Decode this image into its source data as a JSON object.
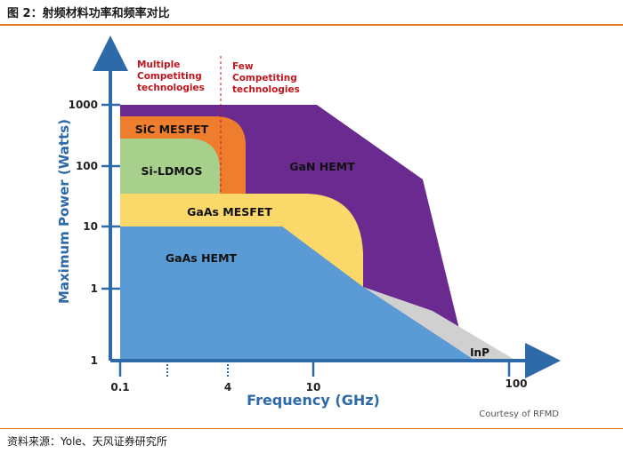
{
  "figure_title": "图 2：射频材料功率和频率对比",
  "source": "资料来源：Yole、天风证券研究所",
  "chart_data": {
    "type": "area",
    "xlabel": "Frequency (GHz)",
    "ylabel": "Maximum Power (Watts)",
    "x_scale": "log",
    "y_scale": "log",
    "x_ticks": [
      "0.1",
      "4",
      "10",
      "100"
    ],
    "y_ticks": [
      "1",
      "1",
      "10",
      "100",
      "1000"
    ],
    "regions": [
      {
        "name": "GaN HEMT",
        "color": "#6a2a8f"
      },
      {
        "name": "SiC MESFET",
        "color": "#ee7d2e"
      },
      {
        "name": "Si-LDMOS",
        "color": "#a6d08c"
      },
      {
        "name": "GaAs MESFET",
        "color": "#fbd86a"
      },
      {
        "name": "GaAs HEMT",
        "color": "#5b9bd5"
      },
      {
        "name": "InP",
        "color": "#d0d0d0"
      }
    ],
    "divider_x": 4,
    "annotations": {
      "left": "Multiple Competiting technologies",
      "right": "Few Competiting technologies"
    },
    "credit": "Courtesy of RFMD",
    "axis_color": "#2e6aa8",
    "annotation_color": "#c0161d"
  }
}
